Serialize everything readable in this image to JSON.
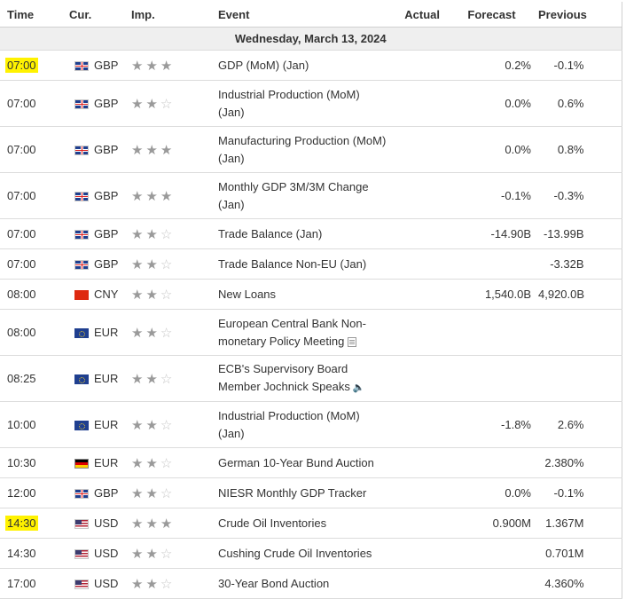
{
  "headers": {
    "time": "Time",
    "currency": "Cur.",
    "importance": "Imp.",
    "event": "Event",
    "actual": "Actual",
    "forecast": "Forecast",
    "previous": "Previous"
  },
  "date_label": "Wednesday, March 13, 2024",
  "colors": {
    "highlight": "#fff200",
    "star_on": "#9a9a9a",
    "star_off": "#c6c6c6"
  },
  "rows": [
    {
      "time": "07:00",
      "highlight": true,
      "flag": "gb",
      "currency": "GBP",
      "stars": 3,
      "event": "GDP (MoM) (Jan)",
      "actual": "",
      "forecast": "0.2%",
      "previous": "-0.1%",
      "tall": false,
      "icon": ""
    },
    {
      "time": "07:00",
      "highlight": false,
      "flag": "gb",
      "currency": "GBP",
      "stars": 2,
      "event": "Industrial Production (MoM) (Jan)",
      "actual": "",
      "forecast": "0.0%",
      "previous": "0.6%",
      "tall": true,
      "icon": ""
    },
    {
      "time": "07:00",
      "highlight": false,
      "flag": "gb",
      "currency": "GBP",
      "stars": 3,
      "event": "Manufacturing Production (MoM) (Jan)",
      "actual": "",
      "forecast": "0.0%",
      "previous": "0.8%",
      "tall": true,
      "icon": ""
    },
    {
      "time": "07:00",
      "highlight": false,
      "flag": "gb",
      "currency": "GBP",
      "stars": 3,
      "event": "Monthly GDP 3M/3M Change (Jan)",
      "actual": "",
      "forecast": "-0.1%",
      "previous": "-0.3%",
      "tall": true,
      "icon": ""
    },
    {
      "time": "07:00",
      "highlight": false,
      "flag": "gb",
      "currency": "GBP",
      "stars": 2,
      "event": "Trade Balance (Jan)",
      "actual": "",
      "forecast": "-14.90B",
      "previous": "-13.99B",
      "tall": false,
      "icon": ""
    },
    {
      "time": "07:00",
      "highlight": false,
      "flag": "gb",
      "currency": "GBP",
      "stars": 2,
      "event": "Trade Balance Non-EU (Jan)",
      "actual": "",
      "forecast": "",
      "previous": "-3.32B",
      "tall": false,
      "icon": ""
    },
    {
      "time": "08:00",
      "highlight": false,
      "flag": "cn",
      "currency": "CNY",
      "stars": 2,
      "event": "New Loans",
      "actual": "",
      "forecast": "1,540.0B",
      "previous": "4,920.0B",
      "tall": false,
      "icon": ""
    },
    {
      "time": "08:00",
      "highlight": false,
      "flag": "eu",
      "currency": "EUR",
      "stars": 2,
      "event": "European Central Bank Non-monetary Policy Meeting",
      "actual": "",
      "forecast": "",
      "previous": "",
      "tall": true,
      "icon": "document"
    },
    {
      "time": "08:25",
      "highlight": false,
      "flag": "eu",
      "currency": "EUR",
      "stars": 2,
      "event": "ECB's Supervisory Board Member Jochnick Speaks",
      "actual": "",
      "forecast": "",
      "previous": "",
      "tall": true,
      "icon": "speaker"
    },
    {
      "time": "10:00",
      "highlight": false,
      "flag": "eu",
      "currency": "EUR",
      "stars": 2,
      "event": "Industrial Production (MoM) (Jan)",
      "actual": "",
      "forecast": "-1.8%",
      "previous": "2.6%",
      "tall": true,
      "icon": ""
    },
    {
      "time": "10:30",
      "highlight": false,
      "flag": "de",
      "currency": "EUR",
      "stars": 2,
      "event": "German 10-Year Bund Auction",
      "actual": "",
      "forecast": "",
      "previous": "2.380%",
      "tall": false,
      "icon": ""
    },
    {
      "time": "12:00",
      "highlight": false,
      "flag": "gb",
      "currency": "GBP",
      "stars": 2,
      "event": "NIESR Monthly GDP Tracker",
      "actual": "",
      "forecast": "0.0%",
      "previous": "-0.1%",
      "tall": false,
      "icon": ""
    },
    {
      "time": "14:30",
      "highlight": true,
      "flag": "us",
      "currency": "USD",
      "stars": 3,
      "event": "Crude Oil Inventories",
      "actual": "",
      "forecast": "0.900M",
      "previous": "1.367M",
      "tall": false,
      "icon": ""
    },
    {
      "time": "14:30",
      "highlight": false,
      "flag": "us",
      "currency": "USD",
      "stars": 2,
      "event": "Cushing Crude Oil Inventories",
      "actual": "",
      "forecast": "",
      "previous": "0.701M",
      "tall": false,
      "icon": ""
    },
    {
      "time": "17:00",
      "highlight": false,
      "flag": "us",
      "currency": "USD",
      "stars": 2,
      "event": "30-Year Bond Auction",
      "actual": "",
      "forecast": "",
      "previous": "4.360%",
      "tall": false,
      "icon": ""
    }
  ]
}
